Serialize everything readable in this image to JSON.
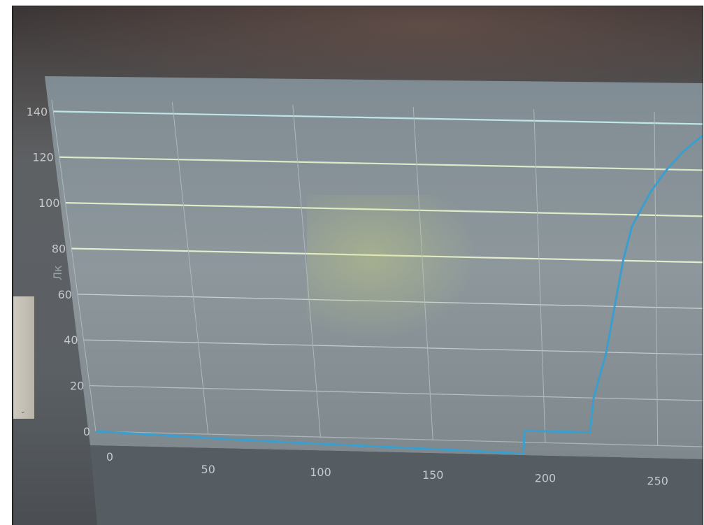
{
  "photo": {
    "description_visible_text": [
      "Лк"
    ]
  },
  "chart_data": {
    "type": "line",
    "title": "",
    "xlabel": "",
    "ylabel": "Лк",
    "xlim": [
      0,
      270
    ],
    "ylim": [
      0,
      145
    ],
    "x_ticks": [
      "0",
      "50",
      "100",
      "150",
      "200",
      "250"
    ],
    "y_ticks": [
      "0",
      "20",
      "40",
      "60",
      "80",
      "100",
      "120",
      "140"
    ],
    "grid": true,
    "series": [
      {
        "color": "#3a9ecf",
        "x": [
          0,
          30,
          60,
          100,
          150,
          190,
          191,
          200,
          220,
          222,
          228,
          232,
          236,
          240,
          248,
          255,
          262,
          270
        ],
        "y": [
          0,
          -1,
          -2,
          -3,
          -4,
          -5,
          5,
          5,
          5,
          20,
          40,
          60,
          80,
          95,
          110,
          120,
          128,
          135
        ]
      }
    ]
  }
}
